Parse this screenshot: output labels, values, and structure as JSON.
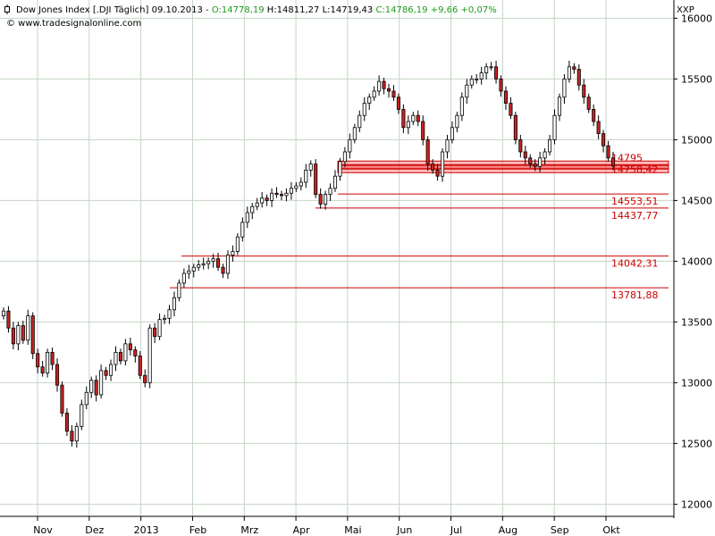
{
  "header": {
    "symbol": "Dow Jones Index [.DJI  Täglich]",
    "date": "09.10.2013",
    "open": "O:14778,19",
    "high": "H:14811,27",
    "low": "L:14719,43",
    "close": "C:14786,19",
    "change": "+9,66",
    "change_pct": "+0,07%",
    "source": "© www.tradesignalonline.com",
    "exchange": "XXP",
    "up_color": "#1a9a1a"
  },
  "chart_data": {
    "type": "candlestick",
    "y_ticks": [
      12000,
      12500,
      13000,
      13500,
      14000,
      14500,
      15000,
      15500,
      16000
    ],
    "ylim": [
      11900,
      16150
    ],
    "x_labels": [
      "Nov",
      "Dez",
      "2013",
      "Feb",
      "Mrz",
      "Apr",
      "Mai",
      "Jun",
      "Jul",
      "Aug",
      "Sep",
      "Okt"
    ],
    "closes": [
      13590,
      13450,
      13320,
      13470,
      13350,
      13550,
      13240,
      13130,
      13080,
      13250,
      13150,
      12980,
      12750,
      12600,
      12520,
      12640,
      12820,
      12920,
      13020,
      12900,
      13100,
      13060,
      13150,
      13250,
      13180,
      13320,
      13270,
      13220,
      13060,
      13000,
      13450,
      13380,
      13520,
      13530,
      13600,
      13700,
      13820,
      13900,
      13920,
      13950,
      13970,
      13980,
      14000,
      14020,
      13950,
      13900,
      14050,
      14080,
      14200,
      14320,
      14400,
      14450,
      14480,
      14520,
      14500,
      14560,
      14550,
      14540,
      14560,
      14600,
      14620,
      14650,
      14750,
      14800,
      14550,
      14470,
      14550,
      14600,
      14700,
      14820,
      14900,
      15000,
      15100,
      15200,
      15300,
      15350,
      15400,
      15480,
      15420,
      15400,
      15350,
      15250,
      15100,
      15150,
      15200,
      15150,
      15000,
      14800,
      14750,
      14700,
      14900,
      15000,
      15100,
      15200,
      15350,
      15450,
      15500,
      15500,
      15550,
      15600,
      15600,
      15500,
      15400,
      15300,
      15200,
      15000,
      14900,
      14850,
      14800,
      14780,
      14850,
      14900,
      15000,
      15200,
      15350,
      15500,
      15600,
      15580,
      15450,
      15350,
      15250,
      15150,
      15050,
      14950,
      14850,
      14786
    ],
    "levels": [
      {
        "value": 14795,
        "label": "14795",
        "band": true
      },
      {
        "value": 14758.42,
        "label": "14758,42",
        "band": true
      },
      {
        "value": 14553.51,
        "label": "14553,51",
        "band": false
      },
      {
        "value": 14437.77,
        "label": "14437,77",
        "band": false
      },
      {
        "value": 14042.31,
        "label": "14042,31",
        "band": false
      },
      {
        "value": 13781.88,
        "label": "13781,88",
        "band": false
      }
    ],
    "grid": true,
    "line_color": "#cc0000",
    "band_color": "#ff4444",
    "candle_up": "#ffffff",
    "candle_down": "#cc2222",
    "candle_outline": "#000000"
  }
}
